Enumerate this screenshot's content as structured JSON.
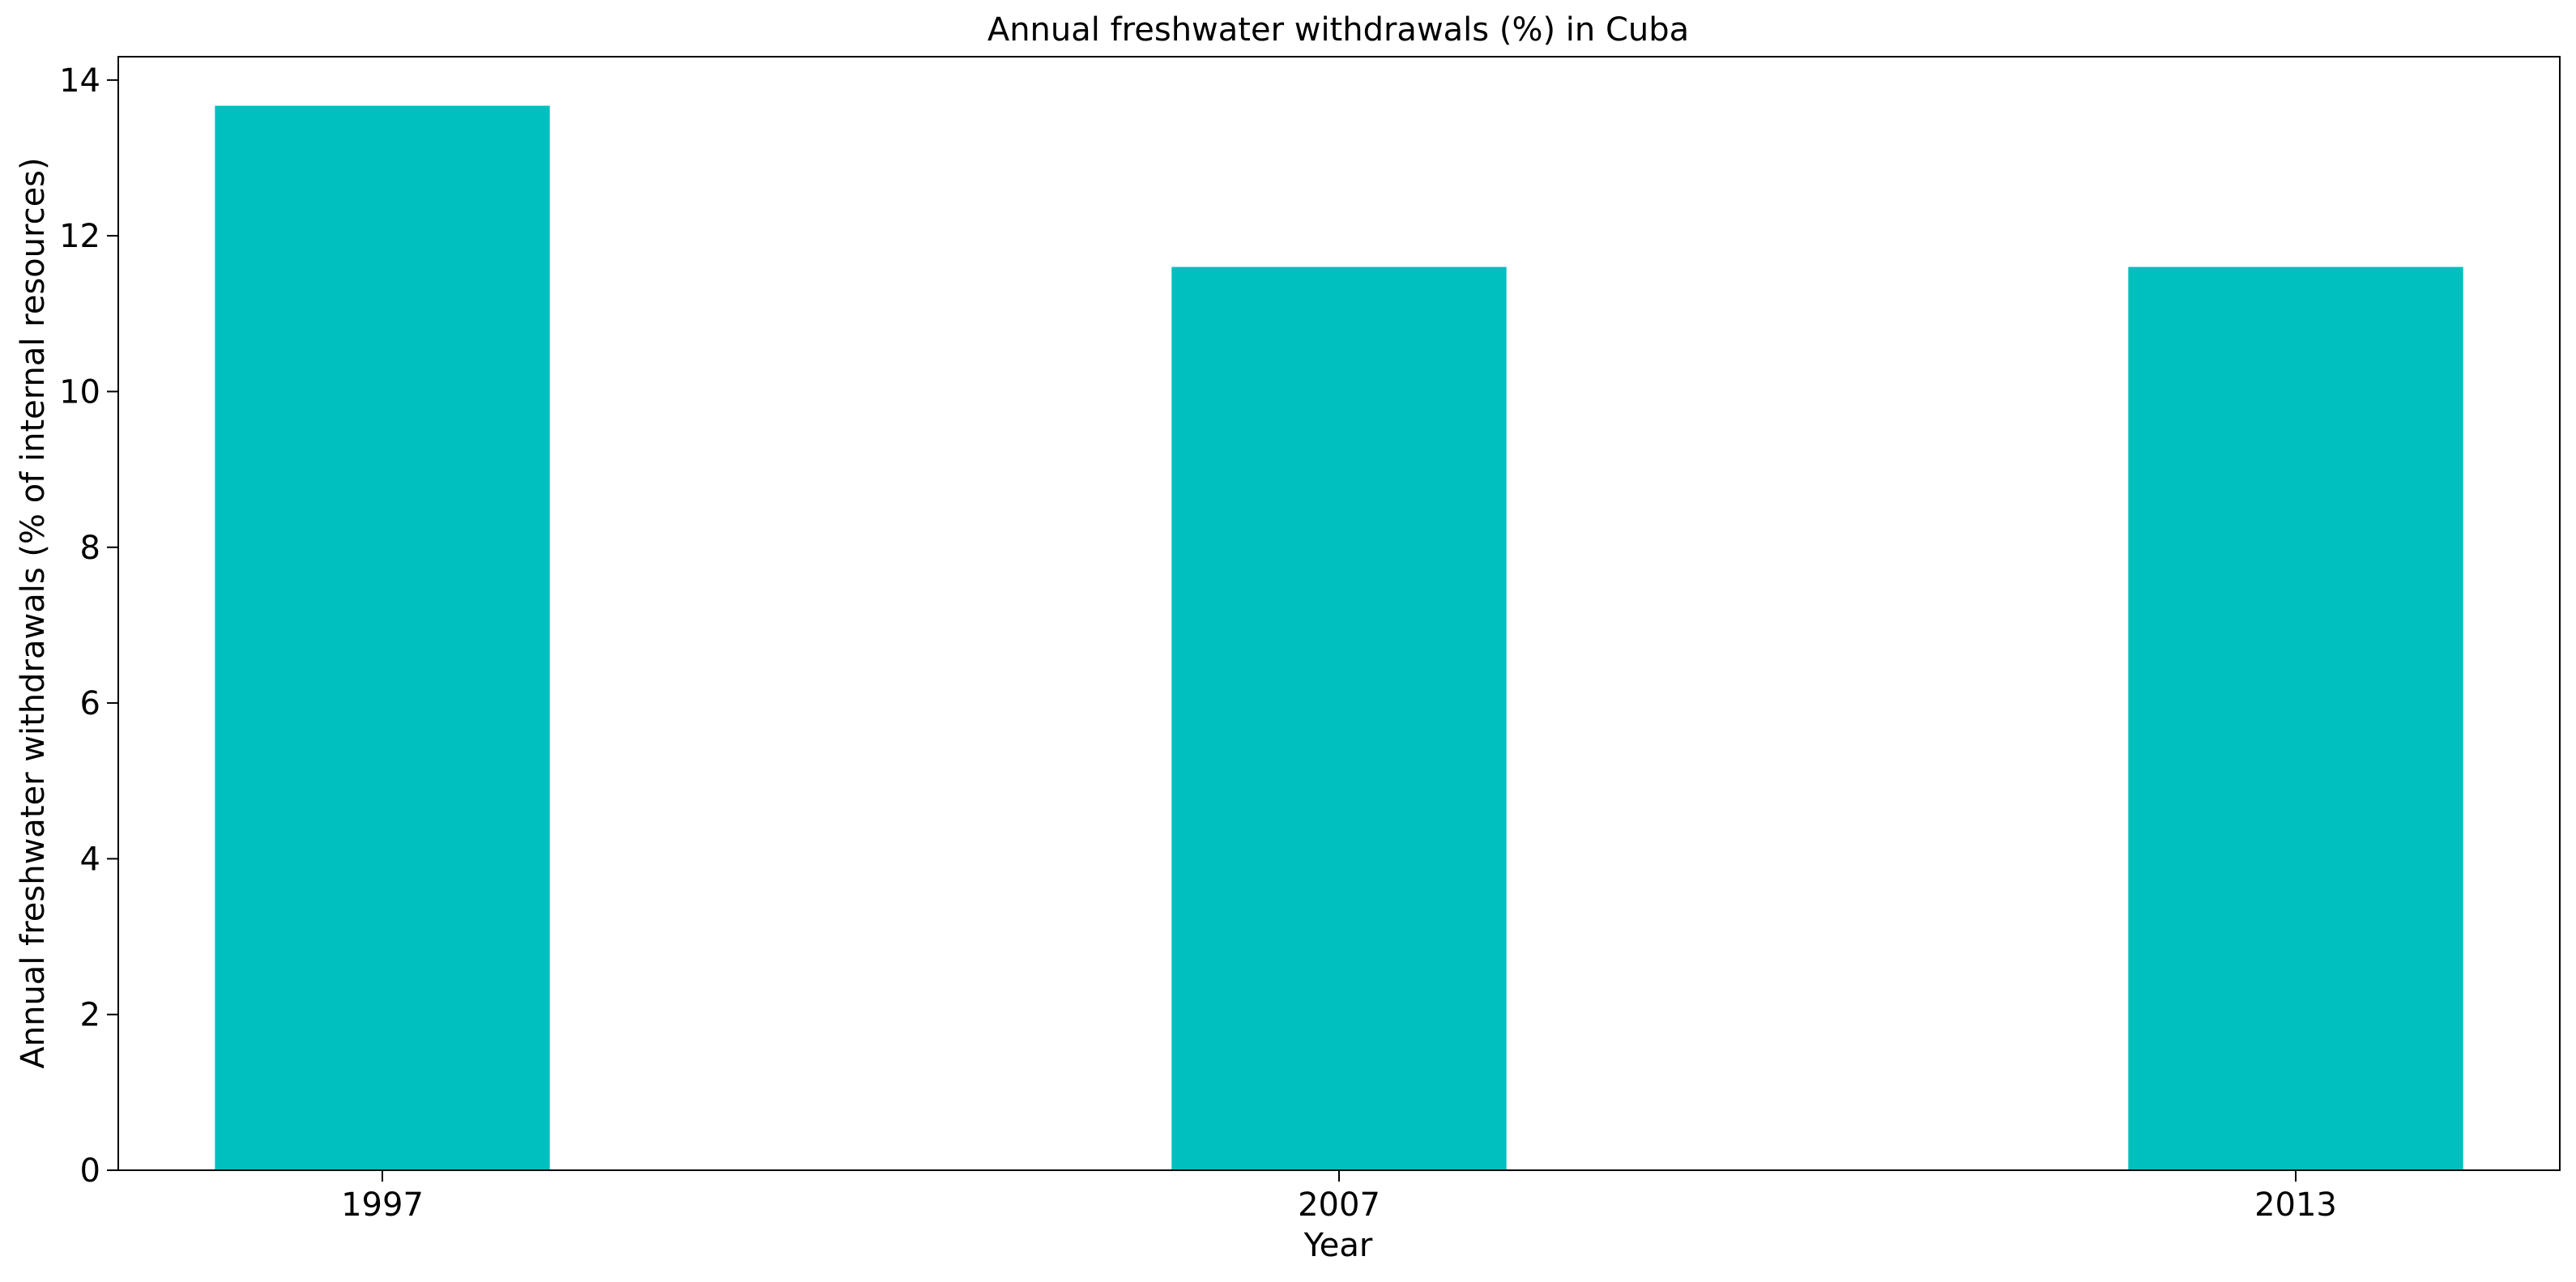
{
  "chart_data": {
    "type": "bar",
    "title": "Annual freshwater withdrawals (%) in Cuba",
    "xlabel": "Year",
    "ylabel": "Annual freshwater withdrawals (% of internal resources)",
    "categories": [
      "1997",
      "2007",
      "2013"
    ],
    "values": [
      13.67,
      11.6,
      11.6
    ],
    "ylim": [
      0,
      14.3
    ],
    "yticks": [
      0,
      2,
      4,
      6,
      8,
      10,
      12,
      14
    ],
    "grid": false,
    "legend": "none",
    "bar_color": "#00BFBF"
  }
}
